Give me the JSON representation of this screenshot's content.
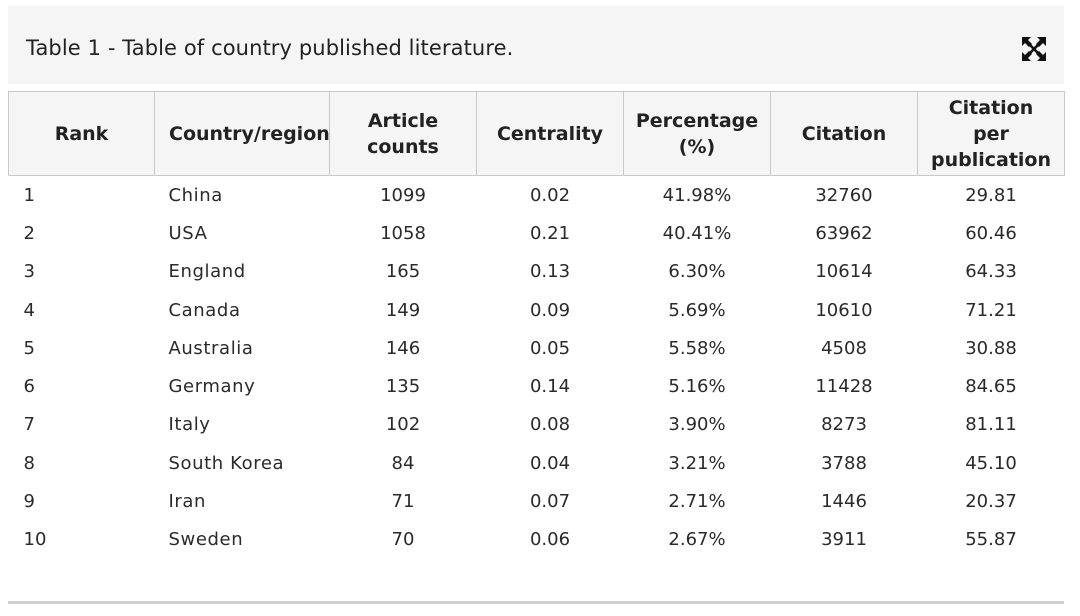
{
  "caption": "Table 1 - Table of country published literature.",
  "icons": {
    "expand": "expand-icon"
  },
  "table": {
    "headers": [
      "Rank",
      "Country/region",
      "Article counts",
      "Centrality",
      "Percentage (%)",
      "Citation",
      "Citation per publication"
    ],
    "rows": [
      [
        "1",
        "China",
        "1099",
        "0.02",
        "41.98%",
        "32760",
        "29.81"
      ],
      [
        "2",
        "USA",
        "1058",
        "0.21",
        "40.41%",
        "63962",
        "60.46"
      ],
      [
        "3",
        "England",
        "165",
        "0.13",
        "6.30%",
        "10614",
        "64.33"
      ],
      [
        "4",
        "Canada",
        "149",
        "0.09",
        "5.69%",
        "10610",
        "71.21"
      ],
      [
        "5",
        "Australia",
        "146",
        "0.05",
        "5.58%",
        "4508",
        "30.88"
      ],
      [
        "6",
        "Germany",
        "135",
        "0.14",
        "5.16%",
        "11428",
        "84.65"
      ],
      [
        "7",
        "Italy",
        "102",
        "0.08",
        "3.90%",
        "8273",
        "81.11"
      ],
      [
        "8",
        "South Korea",
        "84",
        "0.04",
        "3.21%",
        "3788",
        "45.10"
      ],
      [
        "9",
        "Iran",
        "71",
        "0.07",
        "2.71%",
        "1446",
        "20.37"
      ],
      [
        "10",
        "Sweden",
        "70",
        "0.06",
        "2.67%",
        "3911",
        "55.87"
      ]
    ]
  }
}
